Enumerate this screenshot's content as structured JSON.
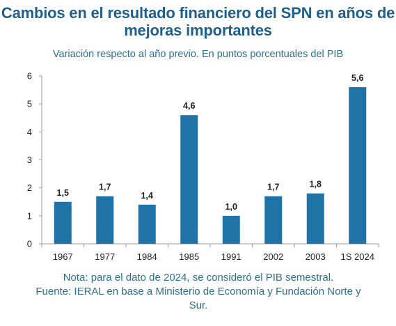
{
  "header": {
    "title": "Cambios en el resultado financiero del SPN en años de mejoras importantes",
    "subtitle": "Variación respecto al año previo. En puntos porcentuales del PIB"
  },
  "footer": {
    "note": "Nota: para el dato de 2024, se consideró el PIB semestral.",
    "source": "Fuente: IERAL en base a Ministerio de Economía y Fundación Norte y Sur."
  },
  "chart_data": {
    "type": "bar",
    "title": "Cambios en el resultado financiero del SPN en años de mejoras importantes",
    "subtitle": "Variación respecto al año previo. En puntos porcentuales del PIB",
    "xlabel": "",
    "ylabel": "",
    "categories": [
      "1967",
      "1977",
      "1984",
      "1985",
      "1991",
      "2002",
      "2003",
      "1S 2024"
    ],
    "values": [
      1.5,
      1.7,
      1.4,
      4.6,
      1.0,
      1.7,
      1.8,
      5.6
    ],
    "data_labels": [
      "1,5",
      "1,7",
      "1,4",
      "4,6",
      "1,0",
      "1,7",
      "1,8",
      "5,6"
    ],
    "yticks": [
      "0",
      "1",
      "2",
      "3",
      "4",
      "5",
      "6"
    ],
    "ylim": [
      0,
      6
    ],
    "grid": false,
    "legend": "none",
    "bar_color": "#1f73a6"
  }
}
